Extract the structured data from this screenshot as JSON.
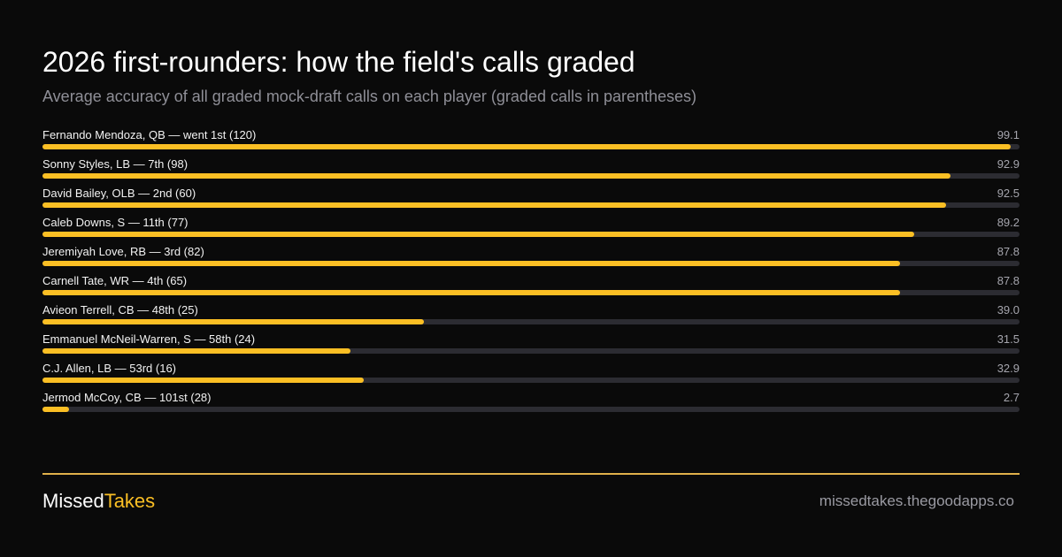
{
  "header": {
    "title": "2026 first-rounders:  how the field's calls graded",
    "subtitle": "Average accuracy of all graded mock-draft calls on each player (graded calls in parentheses)"
  },
  "chart_data": {
    "type": "bar",
    "orientation": "horizontal",
    "title": "2026 first-rounders:  how the field's calls graded",
    "subtitle": "Average accuracy of all graded mock-draft calls on each player (graded calls in parentheses)",
    "categories": [
      "Fernando Mendoza, QB — went 1st (120)",
      "Sonny Styles, LB — 7th (98)",
      "David Bailey, OLB — 2nd (60)",
      "Caleb Downs, S — 11th (77)",
      "Jeremiyah Love, RB — 3rd (82)",
      "Carnell Tate, WR — 4th (65)",
      "Avieon Terrell, CB — 48th (25)",
      "Emmanuel McNeil-Warren, S — 58th (24)",
      "C.J. Allen, LB — 53rd (16)",
      "Jermod McCoy, CB — 101st (28)"
    ],
    "values": [
      99.1,
      92.9,
      92.5,
      89.2,
      87.8,
      87.8,
      39.0,
      31.5,
      32.9,
      2.7
    ],
    "value_labels": [
      "99.1",
      "92.9",
      "92.5",
      "89.2",
      "87.8",
      "87.8",
      "39.0",
      "31.5",
      "32.9",
      "2.7"
    ],
    "xlim": [
      0,
      100
    ],
    "colors": {
      "bar": "#fbbf24",
      "track": "#2c2c32"
    },
    "grid": false
  },
  "footer": {
    "brand_part1": "Missed",
    "brand_part2": "Takes",
    "site": "missedtakes.thegoodapps.co"
  },
  "colors": {
    "background": "#0a0a0a",
    "accent": "#fbbf24",
    "divider": "#e0b04a"
  }
}
